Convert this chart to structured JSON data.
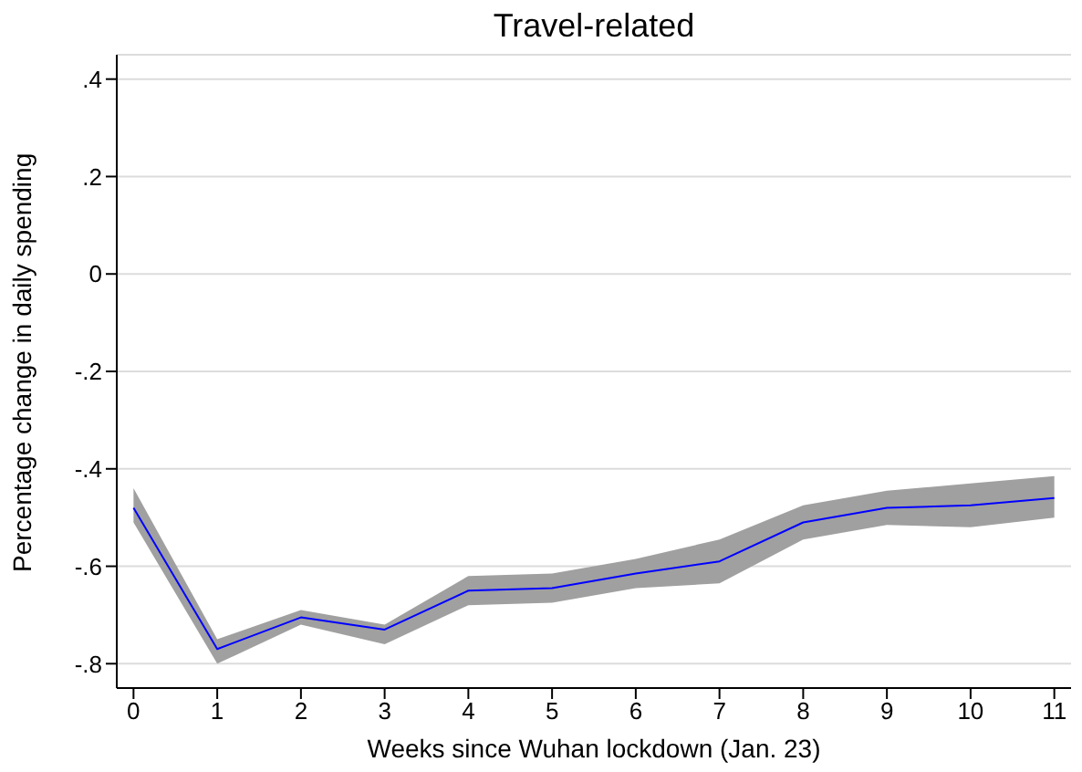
{
  "chart_data": {
    "type": "line",
    "title": "Travel-related",
    "xlabel": "Weeks since Wuhan lockdown (Jan. 23)",
    "ylabel": "Percentage change in daily spending",
    "x": [
      0,
      1,
      2,
      3,
      4,
      5,
      6,
      7,
      8,
      9,
      10,
      11
    ],
    "series": [
      {
        "color": "#0000ff",
        "values": [
          -0.48,
          -0.77,
          -0.705,
          -0.73,
          -0.65,
          -0.645,
          -0.615,
          -0.59,
          -0.51,
          -0.48,
          -0.475,
          -0.46
        ],
        "lower": [
          -0.51,
          -0.8,
          -0.72,
          -0.76,
          -0.68,
          -0.675,
          -0.645,
          -0.635,
          -0.545,
          -0.515,
          -0.52,
          -0.5
        ],
        "upper": [
          -0.44,
          -0.75,
          -0.69,
          -0.72,
          -0.62,
          -0.615,
          -0.585,
          -0.545,
          -0.475,
          -0.445,
          -0.43,
          -0.415
        ]
      }
    ],
    "xlim": [
      -0.2,
      11.2
    ],
    "xticks": [
      0,
      1,
      2,
      3,
      4,
      5,
      6,
      7,
      8,
      9,
      10,
      11
    ],
    "ylim": [
      -0.85,
      0.45
    ],
    "yticks": [
      {
        "value": -0.8,
        "label": "-.8"
      },
      {
        "value": -0.6,
        "label": "-.6"
      },
      {
        "value": -0.4,
        "label": "-.4"
      },
      {
        "value": -0.2,
        "label": "-.2"
      },
      0,
      {
        "value": 0.2,
        "label": ".2"
      },
      {
        "value": 0.4,
        "label": ".4"
      }
    ],
    "grid": "y"
  }
}
